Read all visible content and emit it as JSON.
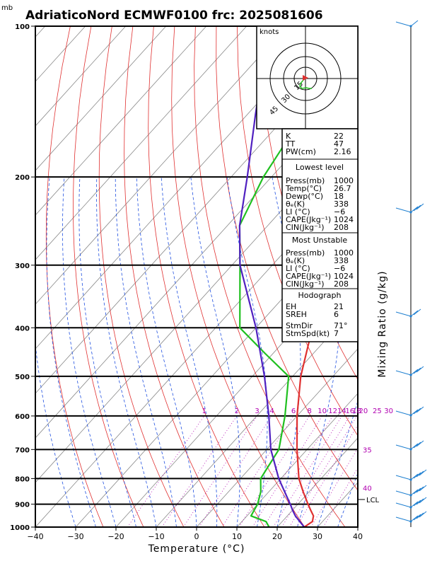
{
  "title": "AdriaticoNord ECMWF0100 frc: 2025081606",
  "units_label": "mb",
  "chart_data": {
    "type": "line",
    "title": "AdriaticoNord ECMWF0100 frc: 2025081606",
    "xlabel": "Temperature (°C)",
    "ylabel": "Mixing Ratio (g/kg)",
    "xlim": [
      -40,
      40
    ],
    "ylim": [
      1000,
      100
    ],
    "x_ticks": [
      "−40",
      "−30",
      "−20",
      "−10",
      "0",
      "10",
      "20",
      "30",
      "40"
    ],
    "pressure_ticks": [
      "100",
      "200",
      "300",
      "400",
      "500",
      "600",
      "700",
      "800",
      "900",
      "1000"
    ],
    "mixing_ratio_labels": [
      "1",
      "2",
      "3",
      "4",
      "6",
      "8",
      "10",
      "12",
      "14",
      "16",
      "18",
      "20",
      "25",
      "30"
    ],
    "theta_labels": [
      "35",
      "40"
    ],
    "lcl_label": "LCL",
    "lcl_pressure": 905,
    "series": [
      {
        "color": "#e03030",
        "pressure": [
          1000,
          975,
          950,
          925,
          900,
          850,
          800,
          700,
          600,
          500,
          400,
          300,
          250,
          200,
          150,
          100
        ],
        "values": [
          26.7,
          27.5,
          26.5,
          24.5,
          22.5,
          18.5,
          14.5,
          7.5,
          0,
          -8,
          -16,
          -26,
          -33,
          -40,
          -48,
          -57
        ]
      },
      {
        "color": "#20c020",
        "pressure": [
          1000,
          975,
          950,
          925,
          900,
          850,
          800,
          700,
          600,
          500,
          450,
          400,
          300,
          250,
          200,
          150,
          100
        ],
        "values": [
          18,
          16,
          11,
          10.5,
          10,
          8,
          5,
          3,
          -3,
          -11,
          -22,
          -34,
          -48,
          -57,
          -62,
          -66,
          -72
        ]
      },
      {
        "color": "#5020c0",
        "pressure": [
          1000,
          950,
          925,
          905,
          800,
          700,
          600,
          500,
          400,
          300,
          250,
          200,
          150,
          120
        ],
        "values": [
          26.7,
          22,
          20,
          18.5,
          9.5,
          1,
          -7,
          -17,
          -30,
          -48,
          -57,
          -66,
          -78,
          -87
        ]
      }
    ]
  },
  "hodograph": {
    "units": "knots",
    "ring_labels": [
      "15",
      "30",
      "45"
    ]
  },
  "indices": {
    "rows": [
      {
        "label": "K",
        "value": "22"
      },
      {
        "label": "TT",
        "value": "47"
      },
      {
        "label": "PW(cm)",
        "value": "2.16"
      }
    ]
  },
  "lowest_level": {
    "header": "Lowest level",
    "rows": [
      {
        "label": "Press(mb)",
        "value": "1000"
      },
      {
        "label": "Temp(°C)",
        "value": "26.7"
      },
      {
        "label": "Dewp(°C)",
        "value": "18"
      },
      {
        "label": "θₑ(K)",
        "value": "338"
      },
      {
        "label": "LI  (°C)",
        "value": "−6"
      },
      {
        "label": "CAPE(Jkg⁻¹)",
        "value": "1024"
      },
      {
        "label": "CIN(Jkg⁻¹)",
        "value": "208"
      }
    ]
  },
  "most_unstable": {
    "header": "Most Unstable",
    "rows": [
      {
        "label": "Press(mb)",
        "value": "1000"
      },
      {
        "label": "θₑ(K)",
        "value": "338"
      },
      {
        "label": "LI  (°C)",
        "value": "−6"
      },
      {
        "label": "CAPE(Jkg⁻¹)",
        "value": "1024"
      },
      {
        "label": "CIN(Jkg⁻¹)",
        "value": "208"
      }
    ]
  },
  "hodograph_panel": {
    "header": "Hodograph",
    "rows": [
      {
        "label": "EH",
        "value": "21"
      },
      {
        "label": "SREH",
        "value": "6"
      },
      {
        "label": "StmDir",
        "value": "71°"
      },
      {
        "label": "StmSpd(kt)",
        "value": "7"
      }
    ]
  },
  "colors": {
    "isotherm": "#888888",
    "dry_adiabat": "#e03030",
    "moist_adiabat": "#2050e0",
    "mixing_ratio": "#b000b0",
    "wind_barb": "#1e7fd0"
  }
}
